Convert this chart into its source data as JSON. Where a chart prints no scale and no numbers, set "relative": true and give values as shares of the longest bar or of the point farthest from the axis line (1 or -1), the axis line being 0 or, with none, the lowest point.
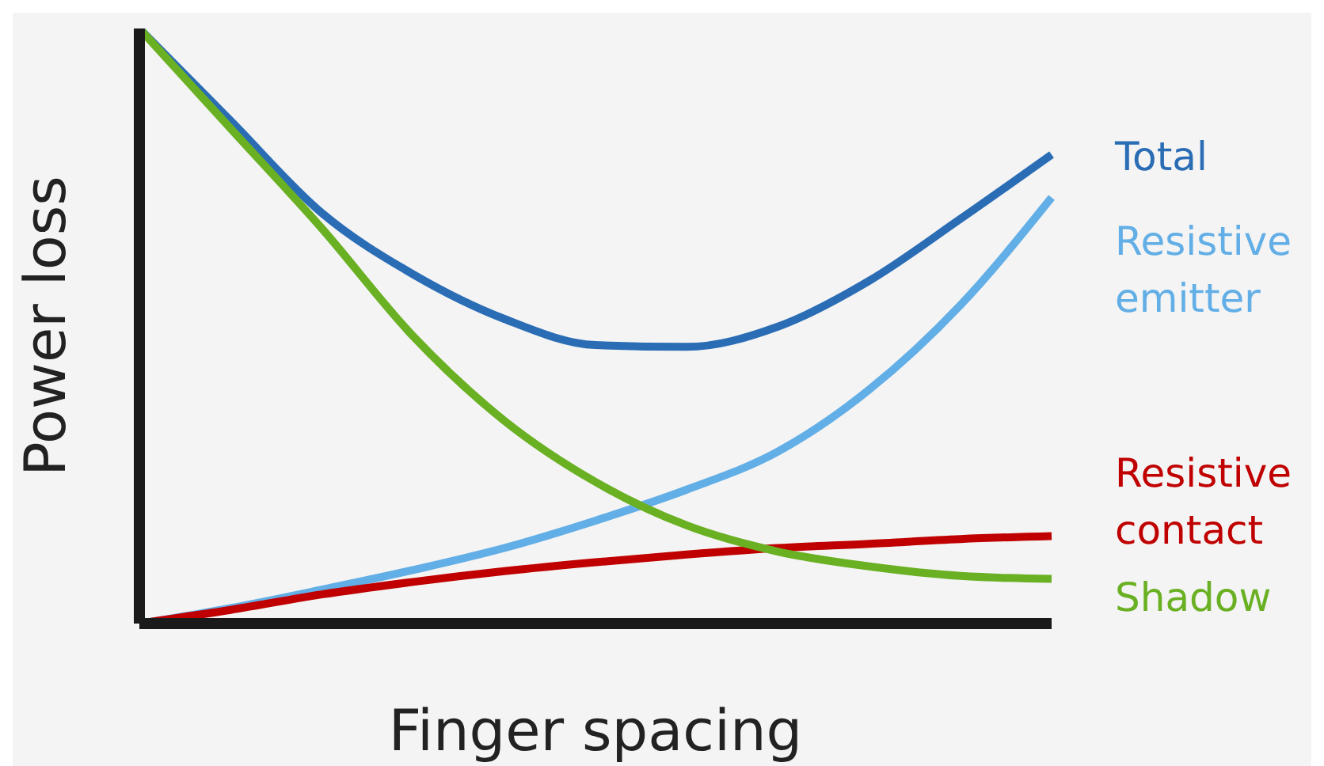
{
  "chart_data": {
    "type": "line",
    "relative": true,
    "xlabel": "Finger spacing",
    "ylabel": "Power loss",
    "marker": "none",
    "line_style": "solid",
    "categories": [
      null,
      null,
      null,
      null,
      null,
      null,
      null,
      null,
      null,
      null,
      null
    ],
    "series": [
      {
        "name": "Total",
        "color": "#2a6db5",
        "values": [
          1,
          0.845,
          0.69,
          0.587,
          0.512,
          0.468,
          0.465,
          0.499,
          0.576,
          0.68,
          0.788
        ]
      },
      {
        "name": "Resistive emitter",
        "color": "#62aee6",
        "values": [
          0,
          0.026,
          0.057,
          0.09,
          0.127,
          0.173,
          0.225,
          0.289,
          0.393,
          0.535,
          0.716
        ]
      },
      {
        "name": "Resistive contact",
        "color": "#c00000",
        "values": [
          0,
          0.023,
          0.049,
          0.07,
          0.088,
          0.103,
          0.116,
          0.127,
          0.134,
          0.142,
          0.147
        ]
      },
      {
        "name": "Shadow",
        "color": "#6ab023",
        "values": [
          1,
          0.832,
          0.664,
          0.483,
          0.341,
          0.238,
          0.165,
          0.121,
          0.096,
          0.08,
          0.075
        ]
      }
    ]
  }
}
